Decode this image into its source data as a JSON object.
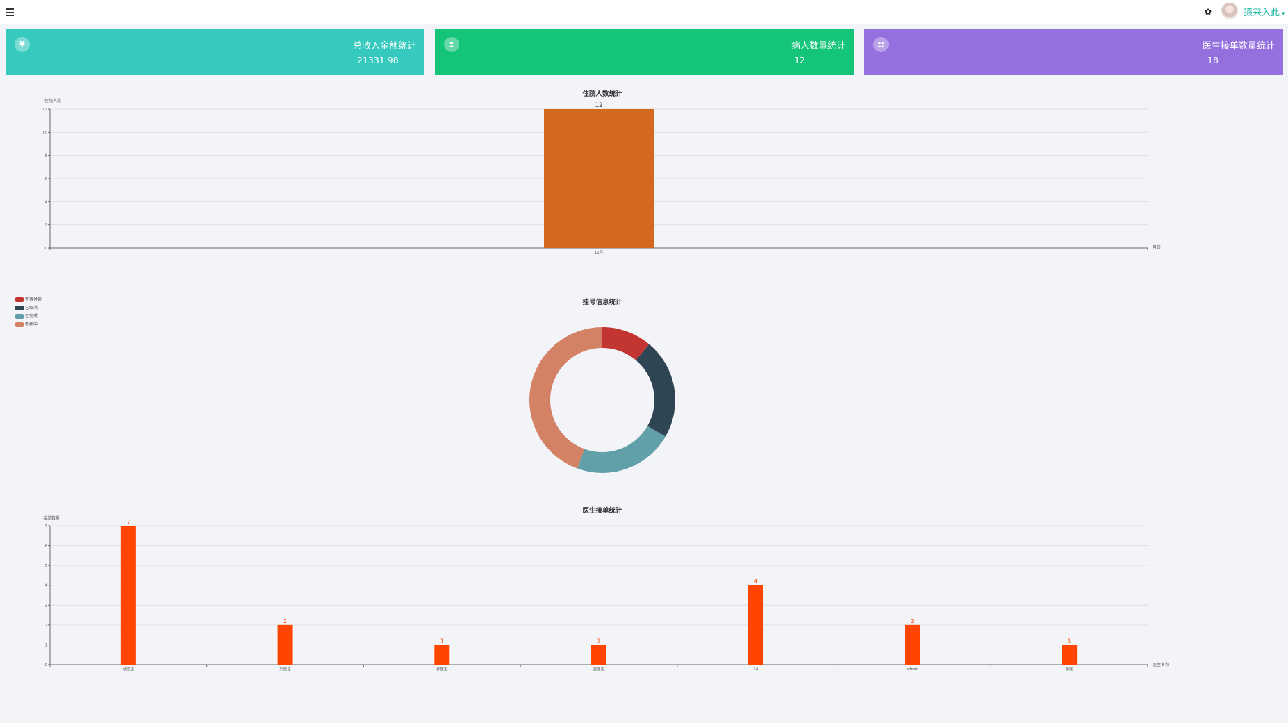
{
  "header": {
    "menu_icon": "hamburger-icon",
    "theme_icon": "palette-icon",
    "username": "猿来入此",
    "username_caret": "▾",
    "accent_color": "#1fb8a4"
  },
  "cards": [
    {
      "icon": "yen-icon",
      "icon_glyph": "¥",
      "title": "总收入金额统计",
      "value": "21331.98",
      "color": "#35cabd"
    },
    {
      "icon": "user-icon",
      "icon_glyph": "●",
      "title": "病人数量统计",
      "value": "12",
      "color": "#14c479"
    },
    {
      "icon": "users-icon",
      "icon_glyph": "●●",
      "title": "医生接单数量统计",
      "value": "18",
      "color": "#9370de"
    }
  ],
  "chart_data": [
    {
      "type": "bar",
      "title": "住院人数统计",
      "ylabel": "住院人数",
      "xlabel": "月份",
      "categories": [
        "11月"
      ],
      "values": [
        12
      ],
      "ylim": [
        0,
        12
      ],
      "yticks": [
        0,
        2,
        4,
        6,
        8,
        10,
        12
      ],
      "grid": true,
      "color": "#d2691e",
      "show_value_labels": true
    },
    {
      "type": "pie",
      "title": "挂号信息统计",
      "donut": true,
      "legend_position": "left",
      "slices": [
        {
          "label": "等待付款",
          "value": 1,
          "color": "#c23531"
        },
        {
          "label": "已取消",
          "value": 2,
          "color": "#2f4554"
        },
        {
          "label": "已完成",
          "value": 2,
          "color": "#61a0a8"
        },
        {
          "label": "看病中",
          "value": 4,
          "color": "#d48265"
        }
      ]
    },
    {
      "type": "bar",
      "title": "医生接单统计",
      "ylabel": "接单数量",
      "xlabel": "医生名称",
      "categories": [
        "赵医生",
        "刘医生",
        "孙医生",
        "金医生",
        "14",
        "admin",
        "李医"
      ],
      "values": [
        7,
        2,
        1,
        1,
        4,
        2,
        1
      ],
      "ylim": [
        0,
        7
      ],
      "yticks": [
        0,
        1,
        2,
        3,
        4,
        5,
        6,
        7
      ],
      "grid": true,
      "color": "#ff4500",
      "show_value_labels": true,
      "value_label_color": "#ff4500"
    }
  ]
}
